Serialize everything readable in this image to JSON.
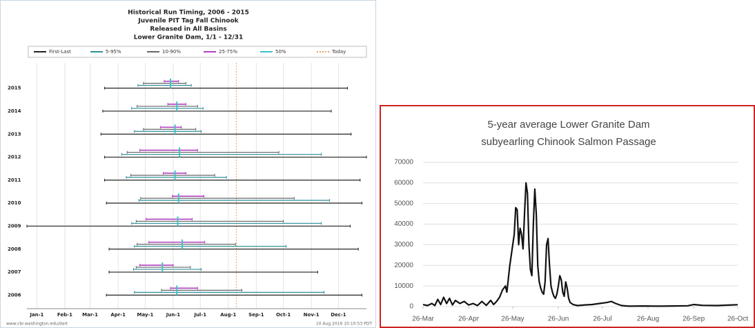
{
  "chart_data": [
    {
      "type": "range",
      "title": [
        "Historical Run Timing, 2006 - 2015",
        "Juvenile PIT Tag Fall Chinook",
        "Released in All Basins",
        "Lower Granite Dam, 1/1 - 12/31"
      ],
      "categories": [
        "2015",
        "2014",
        "2013",
        "2012",
        "2011",
        "2010",
        "2009",
        "2008",
        "2007",
        "2006"
      ],
      "series": [
        {
          "name": "First-Last",
          "color": "#222222",
          "low": [
            76,
            74,
            72,
            76,
            76,
            78,
            -10,
            81,
            81,
            78
          ],
          "high": [
            345,
            327,
            349,
            366,
            359,
            361,
            348,
            357,
            312,
            361
          ]
        },
        {
          "name": "5-95%",
          "color": "#2f8f9a",
          "low": [
            113,
            106,
            109,
            95,
            100,
            114,
            106,
            109,
            108,
            109
          ],
          "high": [
            172,
            185,
            183,
            316,
            211,
            325,
            316,
            277,
            183,
            319
          ]
        },
        {
          "name": "10-90%",
          "color": "#666666",
          "low": [
            119,
            112,
            119,
            101,
            105,
            116,
            111,
            112,
            111,
            139
          ],
          "high": [
            166,
            179,
            177,
            269,
            198,
            286,
            274,
            221,
            171,
            228
          ]
        },
        {
          "name": "25-75%",
          "color": "#b040c0",
          "low": [
            142,
            146,
            138,
            115,
            141,
            151,
            122,
            125,
            115,
            149
          ],
          "high": [
            158,
            166,
            161,
            179,
            166,
            186,
            173,
            187,
            152,
            179
          ]
        },
        {
          "name": "50%",
          "color": "#40c0c8",
          "values": [
            149,
            156,
            154,
            159,
            154,
            158,
            157,
            162,
            140,
            156
          ]
        }
      ],
      "today": {
        "name": "Today",
        "value": 222,
        "color": "#e8a060"
      },
      "xlim": [
        -10,
        366
      ],
      "xticks": [
        {
          "value": 1,
          "label": "Jan-1"
        },
        {
          "value": 32,
          "label": "Feb-1"
        },
        {
          "value": 60,
          "label": "Mar-1"
        },
        {
          "value": 91,
          "label": "Apr-1"
        },
        {
          "value": 121,
          "label": "May-1"
        },
        {
          "value": 152,
          "label": "Jun-1"
        },
        {
          "value": 182,
          "label": "Jul-1"
        },
        {
          "value": 213,
          "label": "Aug-1"
        },
        {
          "value": 244,
          "label": "Sep-1"
        },
        {
          "value": 274,
          "label": "Oct-1"
        },
        {
          "value": 305,
          "label": "Nov-1"
        },
        {
          "value": 335,
          "label": "Dec-1"
        }
      ],
      "grid": true,
      "footer_left": "www.cbr.washington.edu/dart",
      "footer_right": "10 Aug 2016 10:10:53 PDT"
    },
    {
      "type": "line",
      "title": [
        "5-year average Lower Granite Dam",
        "subyearling Chinook Salmon Passage"
      ],
      "color": "#111111",
      "x": [
        0,
        3,
        6,
        8,
        10,
        12,
        14,
        16,
        18,
        20,
        22,
        25,
        28,
        31,
        34,
        37,
        40,
        43,
        46,
        48,
        50,
        52,
        54,
        56,
        57,
        59,
        61,
        62,
        63,
        64,
        65,
        66,
        67,
        68,
        69,
        70,
        71,
        72,
        73,
        74,
        75,
        76,
        77,
        78,
        79,
        80,
        81,
        82,
        83,
        84,
        85,
        86,
        87,
        88,
        89,
        90,
        91,
        92,
        93,
        94,
        95,
        96,
        97,
        98,
        99,
        100,
        102,
        105,
        110,
        115,
        120,
        125,
        128,
        131,
        135,
        140,
        150,
        160,
        170,
        180,
        184,
        190,
        200,
        210,
        214
      ],
      "values": [
        1000,
        500,
        1500,
        500,
        3500,
        1000,
        4500,
        1500,
        4000,
        800,
        3000,
        1500,
        2500,
        800,
        1500,
        500,
        2500,
        600,
        3000,
        1000,
        2500,
        4500,
        8000,
        10000,
        7000,
        20000,
        30000,
        35000,
        48000,
        47000,
        30000,
        38000,
        35000,
        28000,
        45000,
        60000,
        55000,
        30000,
        18000,
        15000,
        40000,
        57000,
        45000,
        20000,
        12000,
        9000,
        7000,
        6000,
        12000,
        30000,
        33000,
        20000,
        10000,
        7000,
        5000,
        4000,
        6000,
        10000,
        15000,
        13000,
        7000,
        5000,
        12000,
        9000,
        4000,
        2000,
        1000,
        500,
        800,
        1000,
        1500,
        2000,
        2500,
        1500,
        500,
        200,
        300,
        200,
        300,
        400,
        1000,
        600,
        500,
        800,
        900
      ],
      "xlim": [
        0,
        214
      ],
      "xticks": [
        {
          "value": 0,
          "label": "26-Mar"
        },
        {
          "value": 31,
          "label": "26-Apr"
        },
        {
          "value": 61,
          "label": "26-May"
        },
        {
          "value": 92,
          "label": "26-Jun"
        },
        {
          "value": 122,
          "label": "26-Jul"
        },
        {
          "value": 153,
          "label": "26-Aug"
        },
        {
          "value": 184,
          "label": "26-Sep"
        },
        {
          "value": 214,
          "label": "26-Oct"
        }
      ],
      "ylim": [
        0,
        70000
      ],
      "yticks": [
        0,
        10000,
        20000,
        30000,
        40000,
        50000,
        60000,
        70000
      ],
      "grid": true
    }
  ]
}
